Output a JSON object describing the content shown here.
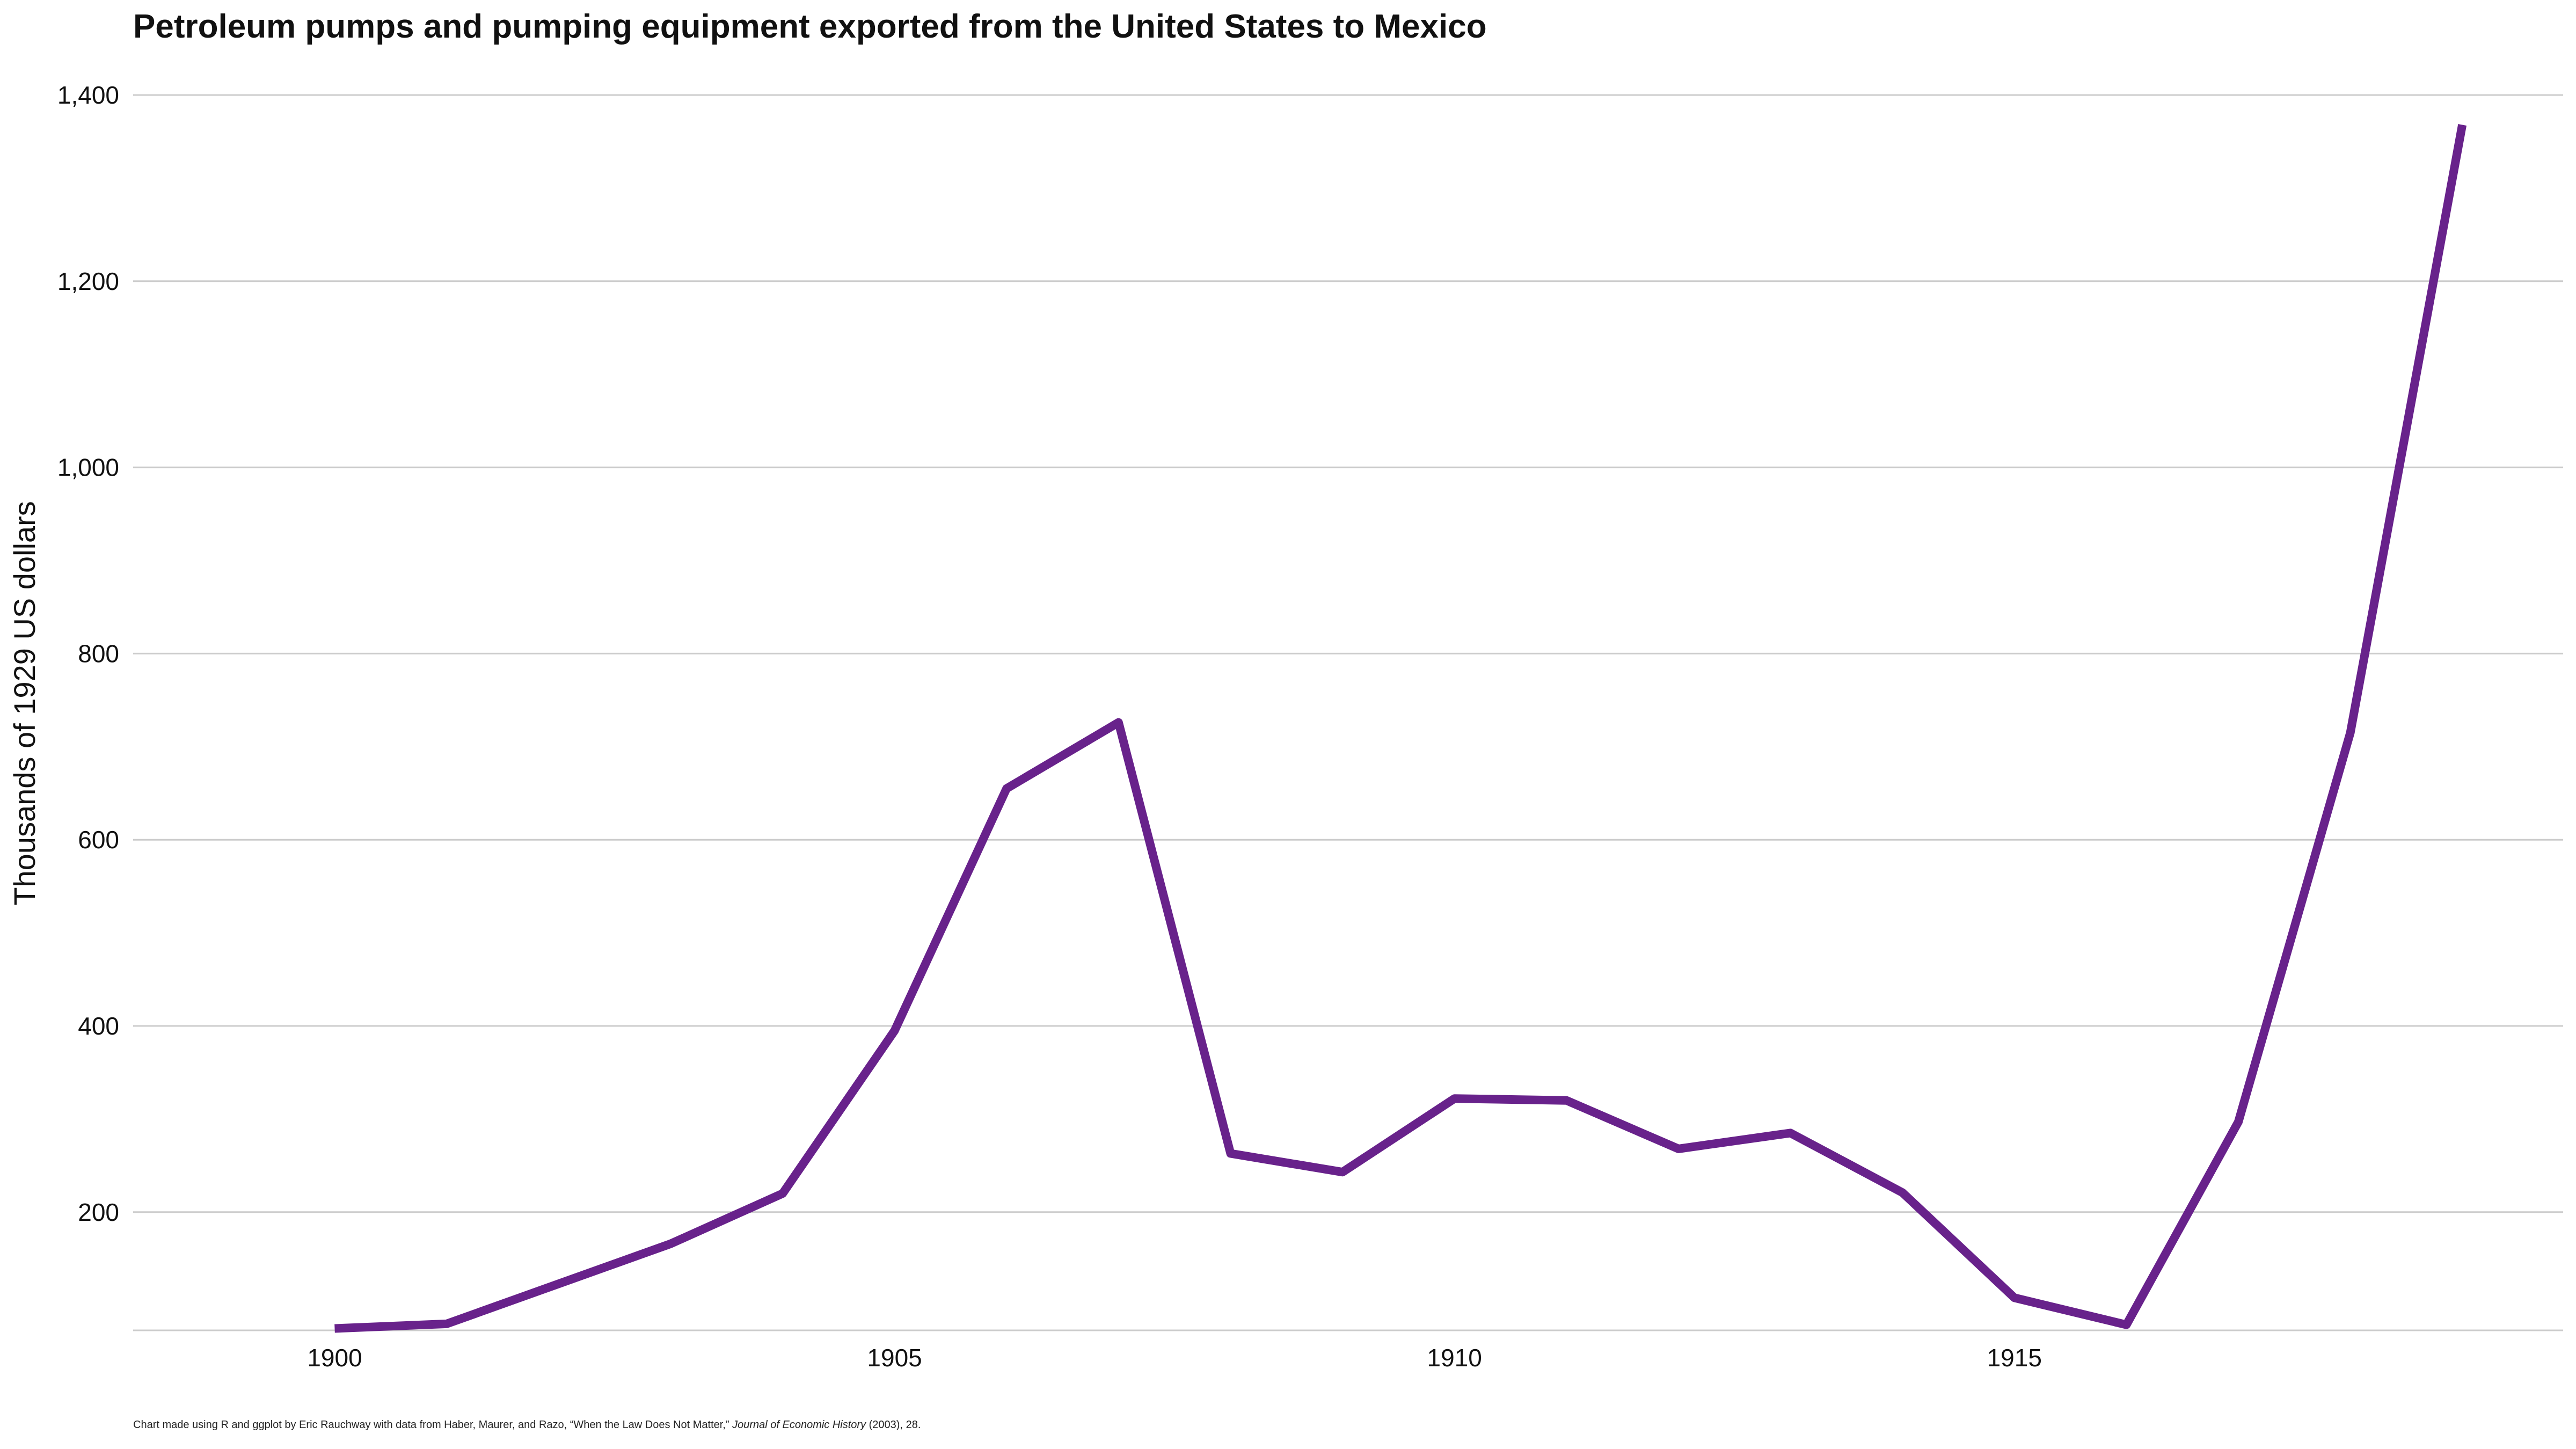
{
  "chart_data": {
    "type": "line",
    "title": "Petroleum pumps and pumping equipment exported from the United States to Mexico",
    "ylabel": "Thousands of 1929 US dollars",
    "xlabel": "",
    "xlim": [
      1898.2,
      1919.9
    ],
    "ylim": [
      73,
      1400
    ],
    "x_ticks": [
      1900,
      1905,
      1910,
      1915
    ],
    "y_ticks": [
      200,
      400,
      600,
      800,
      1000,
      1200,
      1400
    ],
    "x_tick_labels": [
      "1900",
      "1905",
      "1910",
      "1915"
    ],
    "y_tick_labels": [
      "200",
      "400",
      "600",
      "800",
      "1,000",
      "1,200",
      "1,400"
    ],
    "grid": "horizontal",
    "legend": "none",
    "series": [
      {
        "color": "#68228b",
        "x": [
          1900,
          1901,
          1902,
          1903,
          1904,
          1905,
          1906,
          1907,
          1908,
          1909,
          1910,
          1911,
          1912,
          1913,
          1914,
          1915,
          1916,
          1917,
          1918,
          1919
        ],
        "y": [
          75,
          80,
          123,
          166,
          220,
          395,
          655,
          726,
          263,
          243,
          322,
          320,
          268,
          285,
          221,
          108,
          79,
          297,
          715,
          1368
        ]
      }
    ]
  },
  "caption": {
    "prefix": "Chart made using R and ggplot by Eric Rauchway with data from Haber, Maurer, and Razo, “When the Law Does Not Matter,”",
    "journal": "Journal of Economic History",
    "suffix": "(2003), 28."
  }
}
